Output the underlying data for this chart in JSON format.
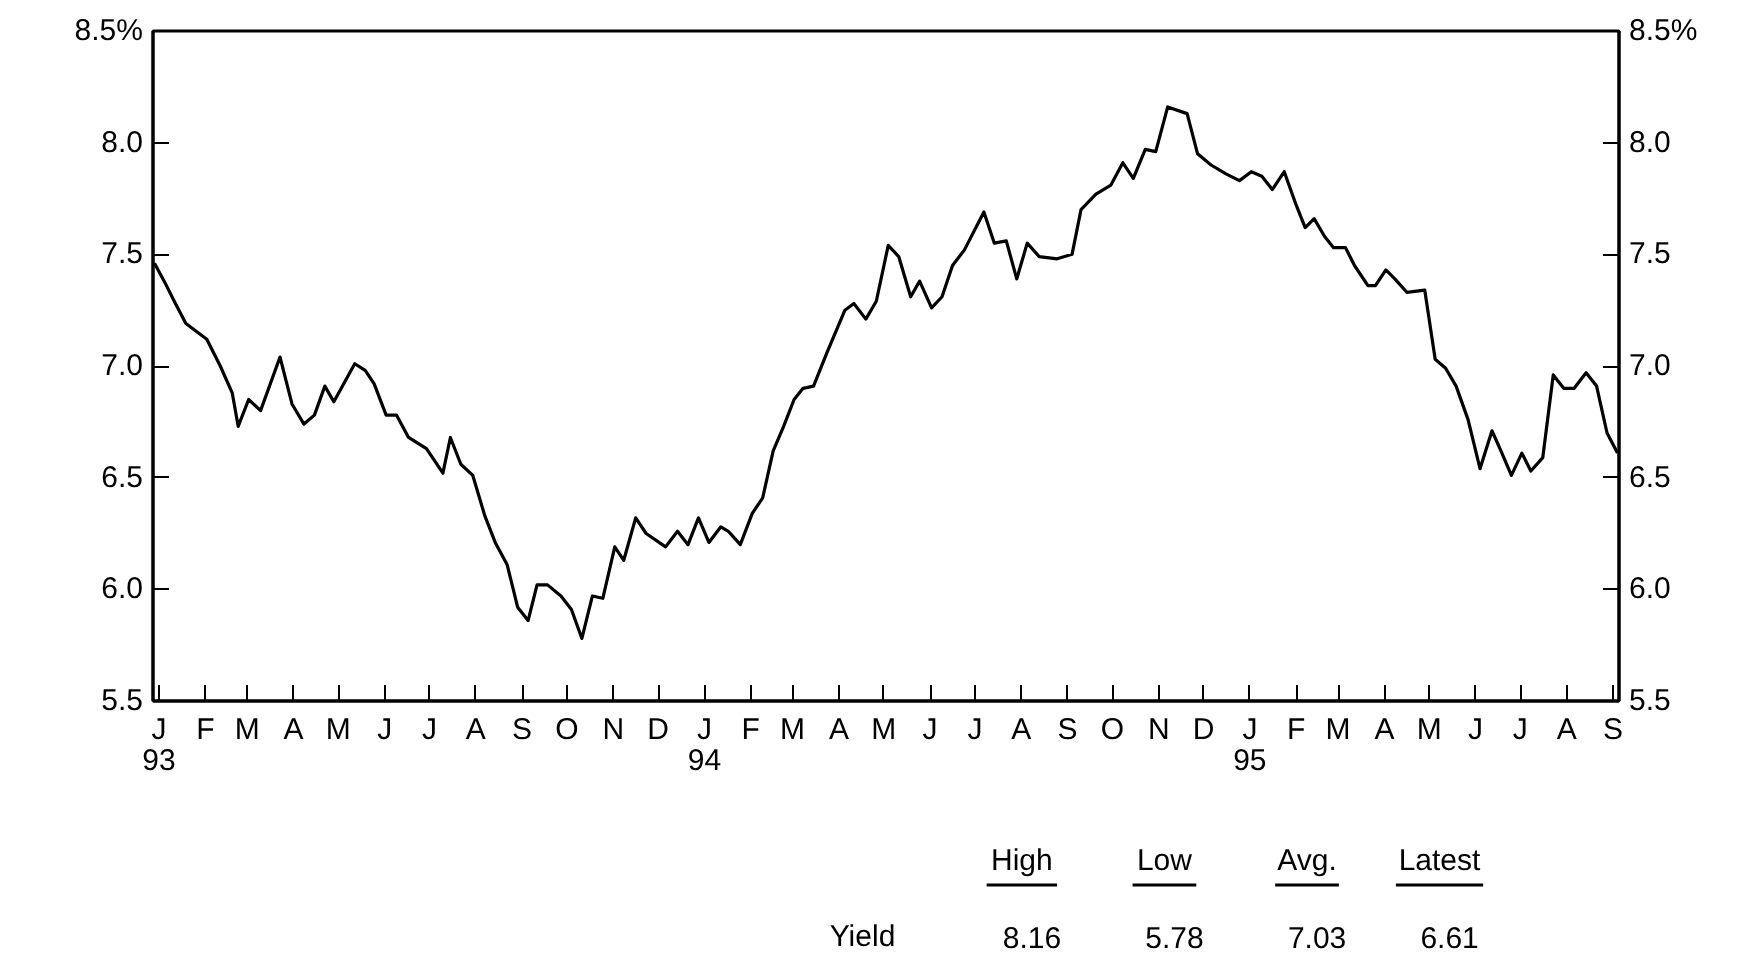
{
  "chart_data": {
    "type": "line",
    "x": [
      "1992-12-29",
      "1993-01-06",
      "1993-01-12",
      "1993-01-19",
      "1993-02-02",
      "1993-02-11",
      "1993-02-19",
      "1993-02-23",
      "1993-03-02",
      "1993-03-10",
      "1993-03-23",
      "1993-03-31",
      "1993-04-08",
      "1993-04-15",
      "1993-04-22",
      "1993-04-28",
      "1993-05-12",
      "1993-05-19",
      "1993-05-25",
      "1993-06-02",
      "1993-06-09",
      "1993-06-17",
      "1993-06-29",
      "1993-07-10",
      "1993-07-15",
      "1993-07-22",
      "1993-07-30",
      "1993-08-07",
      "1993-08-14",
      "1993-08-22",
      "1993-08-29",
      "1993-09-05",
      "1993-09-11",
      "1993-09-18",
      "1993-09-27",
      "1993-10-04",
      "1993-10-11",
      "1993-10-18",
      "1993-10-25",
      "1993-11-02",
      "1993-11-08",
      "1993-11-16",
      "1993-11-23",
      "1993-12-06",
      "1993-12-14",
      "1993-12-21",
      "1993-12-28",
      "1994-01-04",
      "1994-01-12",
      "1994-01-17",
      "1994-01-25",
      "1994-02-02",
      "1994-02-09",
      "1994-02-16",
      "1994-02-23",
      "1994-03-02",
      "1994-03-08",
      "1994-03-15",
      "1994-03-24",
      "1994-04-05",
      "1994-04-11",
      "1994-04-19",
      "1994-04-26",
      "1994-05-04",
      "1994-05-11",
      "1994-05-19",
      "1994-05-25",
      "1994-06-02",
      "1994-06-09",
      "1994-06-16",
      "1994-06-24",
      "1994-07-07",
      "1994-07-14",
      "1994-07-22",
      "1994-07-29",
      "1994-08-05",
      "1994-08-13",
      "1994-08-25",
      "1994-09-04",
      "1994-09-10",
      "1994-09-20",
      "1994-09-30",
      "1994-10-08",
      "1994-10-15",
      "1994-10-23",
      "1994-10-30",
      "1994-11-07",
      "1994-11-20",
      "1994-11-27",
      "1994-12-06",
      "1994-12-16",
      "1994-12-25",
      "1995-01-02",
      "1995-01-09",
      "1995-01-16",
      "1995-01-24",
      "1995-02-01",
      "1995-02-07",
      "1995-02-13",
      "1995-02-20",
      "1995-02-26",
      "1995-03-06",
      "1995-03-12",
      "1995-03-21",
      "1995-03-26",
      "1995-04-02",
      "1995-04-08",
      "1995-04-16",
      "1995-04-28",
      "1995-05-05",
      "1995-05-12",
      "1995-05-19",
      "1995-05-27",
      "1995-06-04",
      "1995-06-12",
      "1995-06-18",
      "1995-06-25",
      "1995-07-02",
      "1995-07-08",
      "1995-07-16",
      "1995-07-23",
      "1995-07-30",
      "1995-08-06",
      "1995-08-14",
      "1995-08-21",
      "1995-08-28",
      "1995-09-04"
    ],
    "series": [
      {
        "color": "#000000",
        "values": [
          7.46,
          7.36,
          7.28,
          7.19,
          7.12,
          7.0,
          6.88,
          6.73,
          6.85,
          6.8,
          7.04,
          6.83,
          6.74,
          6.78,
          6.91,
          6.84,
          7.01,
          6.98,
          6.92,
          6.78,
          6.78,
          6.68,
          6.63,
          6.52,
          6.68,
          6.56,
          6.51,
          6.33,
          6.21,
          6.11,
          5.92,
          5.86,
          6.02,
          6.02,
          5.97,
          5.91,
          5.78,
          5.97,
          5.96,
          6.19,
          6.13,
          6.32,
          6.25,
          6.19,
          6.26,
          6.2,
          6.32,
          6.21,
          6.28,
          6.26,
          6.2,
          6.34,
          6.41,
          6.62,
          6.73,
          6.85,
          6.9,
          6.91,
          7.06,
          7.25,
          7.28,
          7.21,
          7.29,
          7.54,
          7.49,
          7.31,
          7.38,
          7.26,
          7.31,
          7.45,
          7.52,
          7.69,
          7.55,
          7.56,
          7.39,
          7.55,
          7.49,
          7.48,
          7.5,
          7.7,
          7.77,
          7.81,
          7.91,
          7.84,
          7.97,
          7.96,
          8.16,
          8.13,
          7.95,
          7.9,
          7.86,
          7.83,
          7.87,
          7.85,
          7.79,
          7.87,
          7.72,
          7.62,
          7.66,
          7.58,
          7.53,
          7.53,
          7.45,
          7.36,
          7.36,
          7.43,
          7.39,
          7.33,
          7.34,
          7.03,
          6.99,
          6.91,
          6.76,
          6.54,
          6.71,
          6.62,
          6.51,
          6.61,
          6.53,
          6.59,
          6.96,
          6.9,
          6.9,
          6.97,
          6.91,
          6.7,
          6.61
        ]
      }
    ],
    "xlim": [
      "1992-12-28",
      "1995-09-05"
    ],
    "xticks": [
      {
        "value": "1993-01-01",
        "label": "J\n93"
      },
      {
        "value": "1993-02-01",
        "label": "F"
      },
      {
        "value": "1993-03-01",
        "label": "M"
      },
      {
        "value": "1993-04-01",
        "label": "A"
      },
      {
        "value": "1993-05-01",
        "label": "M"
      },
      {
        "value": "1993-06-01",
        "label": "J"
      },
      {
        "value": "1993-07-01",
        "label": "J"
      },
      {
        "value": "1993-08-01",
        "label": "A"
      },
      {
        "value": "1993-09-01",
        "label": "S"
      },
      {
        "value": "1993-10-01",
        "label": "O"
      },
      {
        "value": "1993-11-01",
        "label": "N"
      },
      {
        "value": "1993-12-01",
        "label": "D"
      },
      {
        "value": "1994-01-01",
        "label": "J\n94"
      },
      {
        "value": "1994-02-01",
        "label": "F"
      },
      {
        "value": "1994-03-01",
        "label": "M"
      },
      {
        "value": "1994-04-01",
        "label": "A"
      },
      {
        "value": "1994-05-01",
        "label": "M"
      },
      {
        "value": "1994-06-01",
        "label": "J"
      },
      {
        "value": "1994-07-01",
        "label": "J"
      },
      {
        "value": "1994-08-01",
        "label": "A"
      },
      {
        "value": "1994-09-01",
        "label": "S"
      },
      {
        "value": "1994-10-01",
        "label": "O"
      },
      {
        "value": "1994-11-01",
        "label": "N"
      },
      {
        "value": "1994-12-01",
        "label": "D"
      },
      {
        "value": "1995-01-01",
        "label": "J\n95"
      },
      {
        "value": "1995-02-01",
        "label": "F"
      },
      {
        "value": "1995-03-01",
        "label": "M"
      },
      {
        "value": "1995-04-01",
        "label": "A"
      },
      {
        "value": "1995-05-01",
        "label": "M"
      },
      {
        "value": "1995-06-01",
        "label": "J"
      },
      {
        "value": "1995-07-01",
        "label": "J"
      },
      {
        "value": "1995-08-01",
        "label": "A"
      },
      {
        "value": "1995-09-01",
        "label": "S"
      }
    ],
    "ylim": [
      5.5,
      8.5
    ],
    "yticks": [
      {
        "value": 5.5,
        "label": "5.5"
      },
      {
        "value": 6.0,
        "label": "6.0"
      },
      {
        "value": 6.5,
        "label": "6.5"
      },
      {
        "value": 7.0,
        "label": "7.0"
      },
      {
        "value": 7.5,
        "label": "7.5"
      },
      {
        "value": 8.0,
        "label": "8.0"
      },
      {
        "value": 8.5,
        "label": "8.5%"
      }
    ],
    "y2lim": [
      5.5,
      8.5
    ],
    "y2ticks": [
      {
        "value": 5.5,
        "label": "5.5"
      },
      {
        "value": 6.0,
        "label": "6.0"
      },
      {
        "value": 6.5,
        "label": "6.5"
      },
      {
        "value": 7.0,
        "label": "7.0"
      },
      {
        "value": 7.5,
        "label": "7.5"
      },
      {
        "value": 8.0,
        "label": "8.0"
      },
      {
        "value": 8.5,
        "label": "8.5%"
      }
    ],
    "annotations": [
      "High",
      "Low",
      "Avg.",
      "Latest",
      "Yield",
      "8.16",
      "5.78",
      "7.03",
      "6.61"
    ],
    "grid": false,
    "marker": "none",
    "line_style": "solid"
  }
}
